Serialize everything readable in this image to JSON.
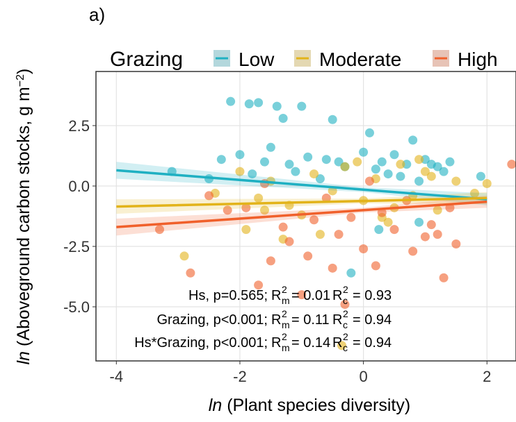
{
  "chart_data": {
    "type": "scatter",
    "panel_label": "a)",
    "legend_title": "Grazing",
    "x_label": {
      "italic": "ln",
      "text": " (Plant species diversity)"
    },
    "y_label": {
      "italic": "ln",
      "text": " (Aboveground carbon stocks, g m",
      "sup": "−2",
      "end": ")"
    },
    "xlim": [
      -4.33,
      2.47
    ],
    "ylim": [
      -7.24,
      4.74
    ],
    "xticks": [
      -4,
      -2,
      0,
      2
    ],
    "yticks": [
      2.5,
      {
        "value": 0,
        "label": "0.0"
      },
      -2.5,
      {
        "value": -5,
        "label": "-5.0"
      }
    ],
    "grid": true,
    "series": [
      {
        "name": "Low",
        "color": "#1fb0c2",
        "x": [
          -2.15,
          -1.85,
          -1.7,
          -1.4,
          -1.3,
          -1.0,
          -0.5,
          0.1,
          0.8,
          -0.2,
          0.9,
          0.25,
          -3.1,
          -2.5,
          1.9,
          -2.0,
          -1.6,
          -1.2,
          -0.9,
          -0.6,
          -0.3,
          0.0,
          0.3,
          0.5,
          0.7,
          1.0,
          1.2,
          1.4,
          -1.8,
          -1.1,
          -0.7,
          0.4,
          0.9,
          1.3,
          -0.4,
          0.2,
          0.6,
          1.1,
          -1.5,
          -2.3
        ],
        "y": [
          3.5,
          3.4,
          3.45,
          3.3,
          2.8,
          3.3,
          2.75,
          2.2,
          1.9,
          -3.6,
          -1.5,
          -1.8,
          0.6,
          0.3,
          0.4,
          1.3,
          1.0,
          0.9,
          1.2,
          1.1,
          0.8,
          1.4,
          1.0,
          1.3,
          0.9,
          1.1,
          0.8,
          1.0,
          0.5,
          0.6,
          0.3,
          0.5,
          0.2,
          0.6,
          1.0,
          0.7,
          0.4,
          0.9,
          1.6,
          1.1
        ],
        "fit": {
          "x": [
            -4,
            0,
            2
          ],
          "y": [
            0.65,
            -0.15,
            -0.55
          ],
          "lower": [
            0.3,
            -0.25,
            -0.8
          ],
          "upper": [
            1.0,
            -0.05,
            -0.3
          ]
        }
      },
      {
        "name": "Moderate",
        "color": "#e2b31a",
        "x": [
          -2.9,
          -2.4,
          -2.0,
          -1.7,
          -1.5,
          -1.2,
          -1.0,
          -0.8,
          -0.5,
          -0.3,
          0.0,
          0.2,
          0.4,
          0.6,
          0.8,
          1.0,
          1.2,
          1.5,
          1.8,
          2.0,
          -1.9,
          -1.3,
          -0.7,
          -0.1,
          0.5,
          1.1,
          -0.35,
          0.3,
          0.9,
          -1.6
        ],
        "y": [
          -2.9,
          -0.3,
          0.6,
          -0.5,
          0.2,
          -0.8,
          -1.2,
          0.5,
          -0.2,
          0.8,
          -0.6,
          0.3,
          -1.5,
          0.9,
          -0.4,
          0.6,
          -1.0,
          0.2,
          -0.3,
          0.1,
          -1.8,
          -2.2,
          -2.0,
          1.0,
          -0.9,
          0.4,
          -6.6,
          -1.3,
          1.1,
          -1.0
        ],
        "fit": {
          "x": [
            -4,
            0,
            2
          ],
          "y": [
            -0.85,
            -0.62,
            -0.5
          ],
          "lower": [
            -1.15,
            -0.72,
            -0.75
          ],
          "upper": [
            -0.55,
            -0.52,
            -0.25
          ]
        }
      },
      {
        "name": "High",
        "color": "#f0602b",
        "x": [
          -2.8,
          -2.2,
          -1.7,
          -1.5,
          -1.2,
          -1.0,
          -0.8,
          -0.5,
          -0.3,
          0.0,
          0.2,
          0.5,
          0.8,
          1.0,
          1.2,
          1.5,
          2.4,
          -3.3,
          -2.5,
          -1.9,
          -1.3,
          -0.9,
          -0.6,
          -0.2,
          0.3,
          0.7,
          1.1,
          1.4,
          0.1,
          -0.4,
          1.3,
          -1.6
        ],
        "y": [
          -3.6,
          -1.0,
          -4.1,
          -3.1,
          -2.3,
          -4.5,
          -1.4,
          -3.4,
          -4.9,
          -2.6,
          -3.3,
          -1.8,
          -2.7,
          -2.1,
          -2.0,
          -2.4,
          0.9,
          -1.8,
          -0.4,
          -0.9,
          -1.7,
          -2.9,
          -0.5,
          -1.3,
          -1.1,
          -0.6,
          -1.6,
          -0.9,
          0.2,
          -2.0,
          -3.8,
          0.1
        ],
        "fit": {
          "x": [
            -4,
            0,
            2
          ],
          "y": [
            -1.7,
            -1.0,
            -0.65
          ],
          "lower": [
            -2.05,
            -1.1,
            -0.9
          ],
          "upper": [
            -1.35,
            -0.9,
            -0.4
          ]
        }
      }
    ],
    "annotations": [
      {
        "term": "Hs, p=0.565;",
        "marginal": {
          "base": "R",
          "sup": "2",
          "sub": "m",
          "value": "= 0.01"
        },
        "conditional": {
          "base": "R",
          "sup": "2",
          "sub": "c",
          "value": "= 0.93"
        }
      },
      {
        "term": "Grazing, p<0.001;",
        "marginal": {
          "base": "R",
          "sup": "2",
          "sub": "m",
          "value": "= 0.11"
        },
        "conditional": {
          "base": "R",
          "sup": "2",
          "sub": "c",
          "value": "= 0.94"
        }
      },
      {
        "term": "Hs*Grazing, p<0.001;",
        "marginal": {
          "base": "R",
          "sup": "2",
          "sub": "m",
          "value": "= 0.14"
        },
        "conditional": {
          "base": "R",
          "sup": "2",
          "sub": "c",
          "value": "= 0.94"
        }
      }
    ]
  }
}
